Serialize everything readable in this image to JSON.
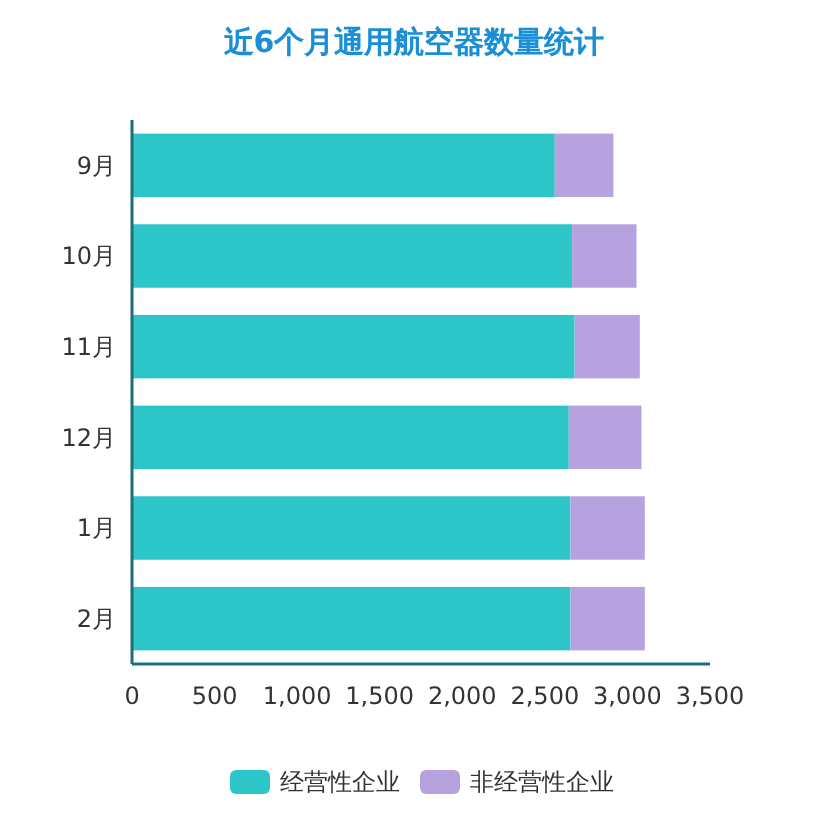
{
  "chart_data": {
    "type": "bar",
    "title": "近6个月通用航空器数量统计",
    "orientation": "horizontal",
    "stacked": true,
    "categories": [
      "9月",
      "10月",
      "11月",
      "12月",
      "1月",
      "2月"
    ],
    "series": [
      {
        "name": "经营性企业",
        "color": "#2ec7c9",
        "values": [
          2560,
          2665,
          2680,
          2645,
          2655,
          2655
        ]
      },
      {
        "name": "非经营性企业",
        "color": "#b6a2de",
        "values": [
          355,
          390,
          395,
          440,
          450,
          450
        ]
      }
    ],
    "xlim": [
      0,
      3500
    ],
    "xticks": [
      0,
      {
        "value": 500,
        "label": "500"
      },
      {
        "value": 1000,
        "label": "1,000"
      },
      {
        "value": 1500,
        "label": "1,500"
      },
      {
        "value": 2000,
        "label": "2,000"
      },
      {
        "value": 2500,
        "label": "2,500"
      },
      {
        "value": 3000,
        "label": "3,000"
      },
      {
        "value": 3500,
        "label": "3,500"
      }
    ],
    "grid": false,
    "legend": "bottom"
  }
}
